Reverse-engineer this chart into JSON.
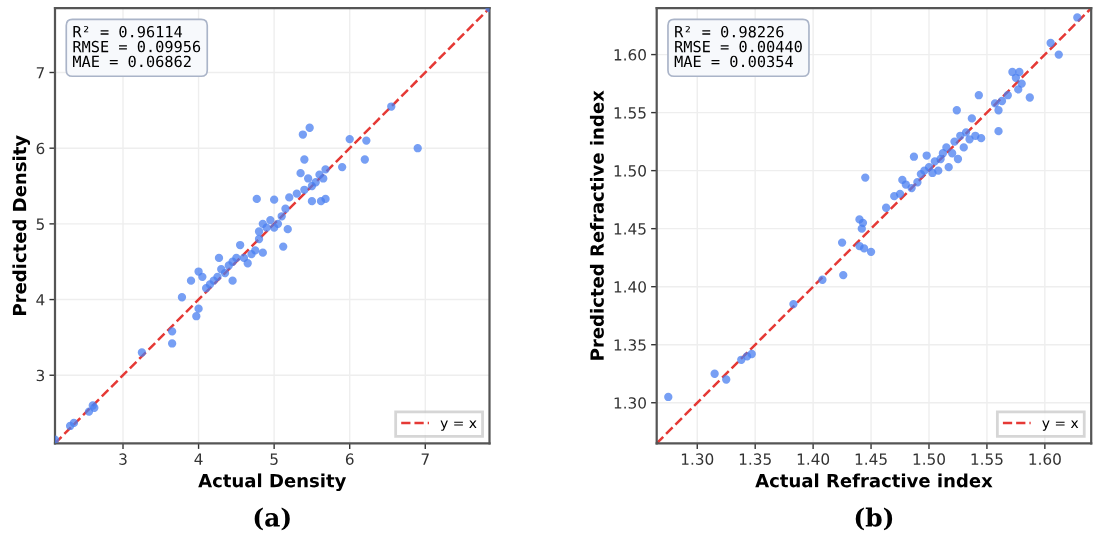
{
  "chart_data": [
    {
      "type": "scatter",
      "xlabel": "Actual Density",
      "ylabel": "Predicted Density",
      "xlim": [
        2.1,
        7.85
      ],
      "ylim": [
        2.1,
        7.85
      ],
      "xticks": [
        3,
        4,
        5,
        6,
        7
      ],
      "yticks": [
        3,
        4,
        5,
        6,
        7
      ],
      "grid": true,
      "legend": "bottom right",
      "annotations": [
        "R² = 0.96114\nRMSE = 0.09956\nMAE = 0.06862",
        "(a)"
      ],
      "series": [
        {
          "marker": "circle",
          "color": "#4a7ff0",
          "x": [
            2.1,
            2.3,
            2.35,
            2.55,
            2.6,
            2.62,
            3.25,
            3.65,
            3.65,
            3.78,
            3.9,
            3.97,
            4.0,
            4.0,
            4.05,
            4.1,
            4.15,
            4.2,
            4.25,
            4.27,
            4.3,
            4.35,
            4.4,
            4.45,
            4.45,
            4.5,
            4.55,
            4.6,
            4.65,
            4.7,
            4.75,
            4.77,
            4.8,
            4.8,
            4.85,
            4.85,
            4.9,
            4.95,
            5.0,
            5.0,
            5.05,
            5.1,
            5.12,
            5.15,
            5.18,
            5.2,
            5.3,
            5.35,
            5.38,
            5.4,
            5.4,
            5.45,
            5.47,
            5.5,
            5.5,
            5.55,
            5.6,
            5.62,
            5.65,
            5.68,
            5.68,
            5.9,
            6.0,
            6.2,
            6.22,
            6.55,
            6.9,
            7.85
          ],
          "values": [
            2.15,
            2.33,
            2.37,
            2.52,
            2.6,
            2.57,
            3.3,
            3.58,
            3.42,
            4.03,
            4.25,
            3.78,
            3.88,
            4.37,
            4.3,
            4.15,
            4.2,
            4.25,
            4.3,
            4.55,
            4.4,
            4.35,
            4.45,
            4.25,
            4.5,
            4.55,
            4.72,
            4.55,
            4.48,
            4.6,
            4.65,
            5.33,
            4.8,
            4.9,
            4.62,
            5.0,
            4.95,
            5.05,
            5.32,
            4.95,
            5.0,
            5.1,
            4.7,
            5.2,
            4.93,
            5.35,
            5.4,
            5.67,
            6.18,
            5.45,
            5.85,
            5.6,
            6.27,
            5.3,
            5.5,
            5.55,
            5.65,
            5.3,
            5.6,
            5.72,
            5.33,
            5.75,
            6.12,
            5.85,
            6.1,
            6.55,
            6.0,
            7.85
          ]
        },
        {
          "type": "line",
          "name": "y = x",
          "color": "#e53935",
          "line_style": "dashed",
          "x": [
            2.1,
            7.85
          ],
          "values": [
            2.1,
            7.85
          ]
        }
      ]
    },
    {
      "type": "scatter",
      "xlabel": "Actual Refractive index",
      "ylabel": "Predicted Refractive index",
      "xlim": [
        1.265,
        1.64
      ],
      "ylim": [
        1.265,
        1.64
      ],
      "xticks": [
        {
          "value": 1.3,
          "label": "1.30"
        },
        {
          "value": 1.35,
          "label": "1.35"
        },
        {
          "value": 1.4,
          "label": "1.40"
        },
        {
          "value": 1.45,
          "label": "1.45"
        },
        {
          "value": 1.5,
          "label": "1.50"
        },
        {
          "value": 1.55,
          "label": "1.55"
        },
        {
          "value": 1.6,
          "label": "1.60"
        }
      ],
      "yticks": [
        {
          "value": 1.3,
          "label": "1.30"
        },
        {
          "value": 1.35,
          "label": "1.35"
        },
        {
          "value": 1.4,
          "label": "1.40"
        },
        {
          "value": 1.45,
          "label": "1.45"
        },
        {
          "value": 1.5,
          "label": "1.50"
        },
        {
          "value": 1.55,
          "label": "1.55"
        },
        {
          "value": 1.6,
          "label": "1.60"
        }
      ],
      "grid": true,
      "legend": "bottom right",
      "annotations": [
        "R² = 0.98226\nRMSE = 0.00440\nMAE = 0.00354",
        "(b)"
      ],
      "series": [
        {
          "marker": "circle",
          "color": "#4a7ff0",
          "x": [
            1.275,
            1.315,
            1.325,
            1.338,
            1.343,
            1.347,
            1.383,
            1.408,
            1.425,
            1.426,
            1.44,
            1.44,
            1.442,
            1.443,
            1.444,
            1.445,
            1.45,
            1.463,
            1.47,
            1.475,
            1.477,
            1.48,
            1.485,
            1.487,
            1.49,
            1.493,
            1.496,
            1.498,
            1.5,
            1.503,
            1.505,
            1.508,
            1.51,
            1.512,
            1.515,
            1.517,
            1.52,
            1.522,
            1.524,
            1.525,
            1.527,
            1.53,
            1.532,
            1.535,
            1.537,
            1.54,
            1.543,
            1.545,
            1.557,
            1.56,
            1.56,
            1.563,
            1.568,
            1.572,
            1.575,
            1.577,
            1.578,
            1.58,
            1.587,
            1.605,
            1.612,
            1.628
          ],
          "values": [
            1.305,
            1.325,
            1.32,
            1.337,
            1.34,
            1.342,
            1.385,
            1.406,
            1.438,
            1.41,
            1.435,
            1.458,
            1.45,
            1.455,
            1.433,
            1.494,
            1.43,
            1.468,
            1.478,
            1.48,
            1.492,
            1.488,
            1.485,
            1.512,
            1.49,
            1.497,
            1.5,
            1.513,
            1.503,
            1.498,
            1.508,
            1.5,
            1.51,
            1.515,
            1.52,
            1.503,
            1.515,
            1.525,
            1.552,
            1.51,
            1.53,
            1.52,
            1.533,
            1.527,
            1.545,
            1.53,
            1.565,
            1.528,
            1.558,
            1.552,
            1.534,
            1.56,
            1.565,
            1.585,
            1.58,
            1.57,
            1.585,
            1.575,
            1.563,
            1.61,
            1.6,
            1.632
          ]
        },
        {
          "type": "line",
          "name": "y = x",
          "color": "#e53935",
          "line_style": "dashed",
          "x": [
            1.265,
            1.64
          ],
          "values": [
            1.265,
            1.64
          ]
        }
      ]
    }
  ]
}
